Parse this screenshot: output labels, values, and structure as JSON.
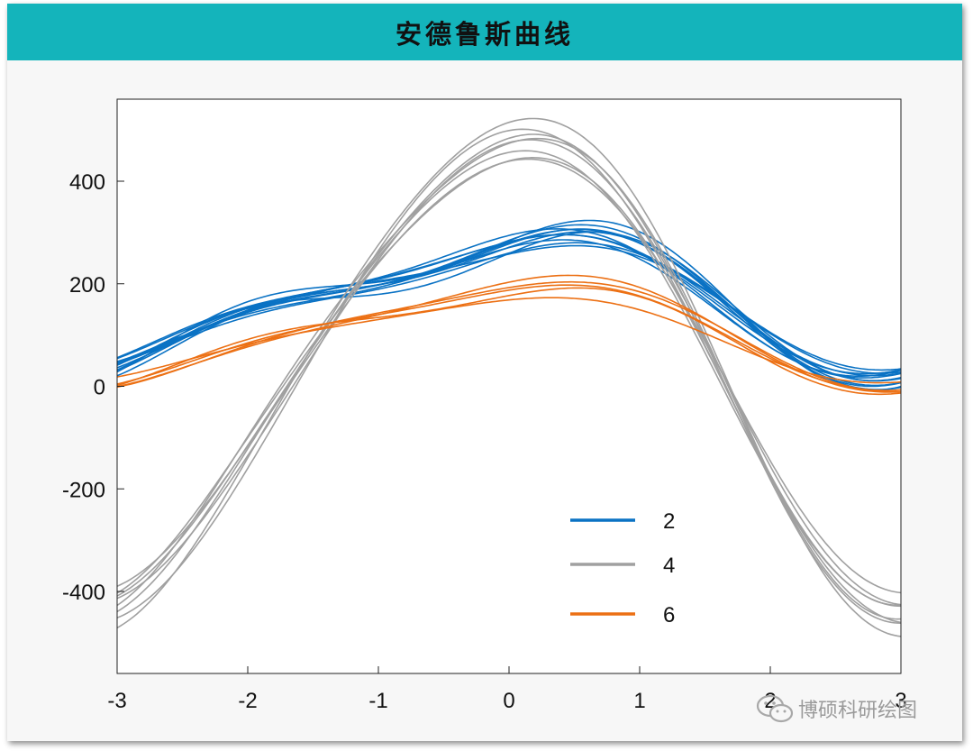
{
  "header": {
    "title": "安德鲁斯曲线"
  },
  "watermark": {
    "text": "博硕科研绘图",
    "icon": "wechat-icon"
  },
  "colors": {
    "header_bg": "#14b4bb",
    "series_2": "#0a72c4",
    "series_4": "#a0a0a0",
    "series_6": "#ec7014"
  },
  "chart_data": {
    "type": "line",
    "title": "",
    "xlabel": "",
    "ylabel": "",
    "xlim": [
      -3,
      3
    ],
    "ylim": [
      -560,
      560
    ],
    "xticks": [
      "-3",
      "-2",
      "-1",
      "0",
      "1",
      "2",
      "3"
    ],
    "yticks": [
      "400",
      "200",
      "0",
      "-200",
      "-400"
    ],
    "grid": false,
    "legend": {
      "position": "lower-right",
      "entries": [
        "2",
        "4",
        "6"
      ]
    },
    "series": [
      {
        "name": "2",
        "color": "#0a72c4",
        "curves": [
          [
            230,
            0,
            130,
            45,
            -15
          ],
          [
            232,
            5,
            128,
            40,
            -12
          ],
          [
            236,
            -8,
            120,
            35,
            -5
          ],
          [
            228,
            10,
            116,
            48,
            -18
          ],
          [
            234,
            -4,
            124,
            32,
            -8
          ],
          [
            225,
            3,
            132,
            42,
            -20
          ],
          [
            238,
            -12,
            126,
            38,
            0
          ],
          [
            226,
            8,
            110,
            30,
            -10
          ],
          [
            240,
            2,
            136,
            52,
            -22
          ],
          [
            220,
            -6,
            118,
            36,
            -3
          ],
          [
            233,
            6,
            134,
            44,
            -14
          ],
          [
            229,
            -2,
            112,
            28,
            -16
          ]
        ]
      },
      {
        "name": "4",
        "color": "#a0a0a0",
        "curves": [
          [
            45,
            0,
            470,
            40,
            -18
          ],
          [
            52,
            10,
            500,
            35,
            -22
          ],
          [
            40,
            -10,
            440,
            30,
            -12
          ],
          [
            48,
            5,
            420,
            25,
            -15
          ],
          [
            55,
            -5,
            460,
            45,
            -25
          ],
          [
            38,
            8,
            480,
            20,
            -8
          ],
          [
            42,
            -8,
            430,
            38,
            -20
          ],
          [
            50,
            12,
            450,
            28,
            -10
          ]
        ]
      },
      {
        "name": "6",
        "color": "#ec7014",
        "curves": [
          [
            145,
            0,
            95,
            20,
            -10
          ],
          [
            148,
            5,
            100,
            18,
            -12
          ],
          [
            135,
            -5,
            78,
            15,
            -5
          ],
          [
            150,
            8,
            105,
            22,
            -8
          ],
          [
            140,
            -3,
            92,
            25,
            -14
          ]
        ]
      }
    ]
  }
}
